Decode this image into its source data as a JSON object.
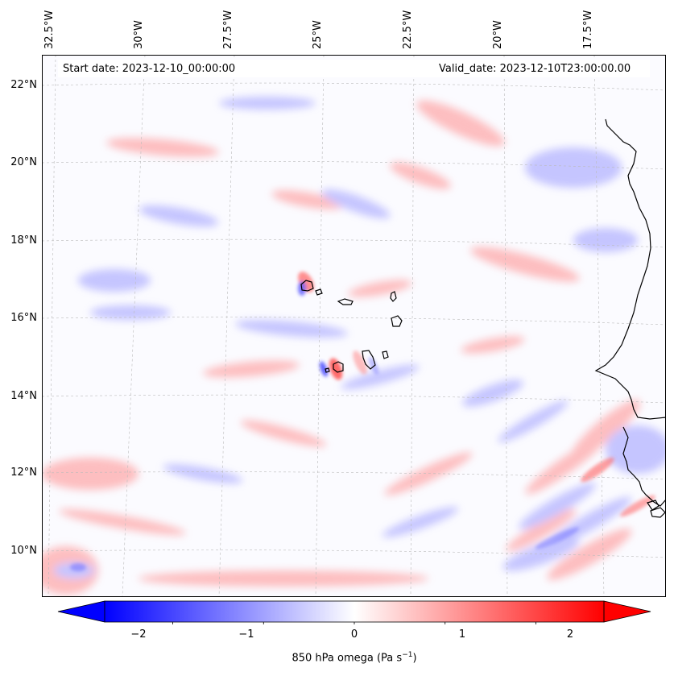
{
  "map": {
    "header": {
      "start_date": "Start date: 2023-12-10_00:00:00",
      "valid_date": "Valid_date: 2023-12-10T23:00:00.00"
    },
    "lon_labels": [
      "32.5°W",
      "30°W",
      "27.5°W",
      "25°W",
      "22.5°W",
      "20°W",
      "17.5°W"
    ],
    "lat_labels": [
      "22°N",
      "20°N",
      "18°N",
      "16°N",
      "14°N",
      "12°N",
      "10°N"
    ],
    "variable": "850 hPa omega",
    "units": "Pa s",
    "units_exponent": "−1",
    "colormap": "bwr",
    "colorbar": {
      "min": -2.75,
      "max": 2.75,
      "ticks": [
        "−2",
        "−1",
        "0",
        "1",
        "2"
      ],
      "tick_values": [
        -2,
        -1,
        0,
        1,
        2
      ]
    },
    "colors": {
      "negative": "#0000ff",
      "neutral": "#ffffff",
      "positive": "#ff0000",
      "coastline": "#000000",
      "gridline": "#bbbbbb"
    }
  }
}
